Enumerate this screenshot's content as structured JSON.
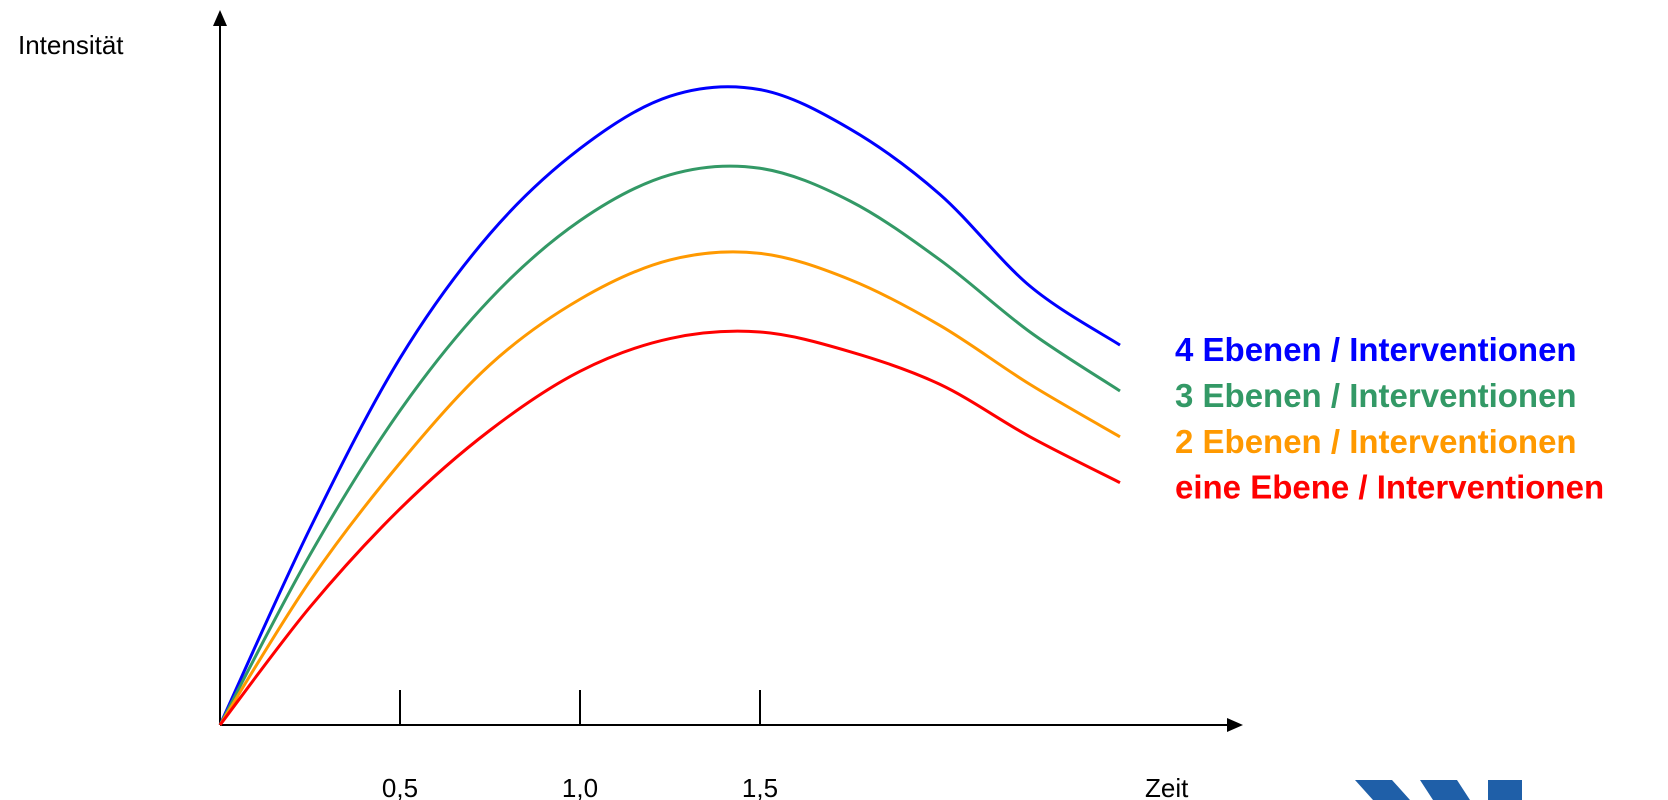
{
  "chart_data": {
    "type": "line",
    "title": "",
    "ylabel": "Intensität",
    "xlabel": "Zeit",
    "xlim": [
      0,
      2.5
    ],
    "ylim": [
      0,
      100
    ],
    "x_ticks": [
      {
        "value": 0.5,
        "label": "0,5"
      },
      {
        "value": 1.0,
        "label": "1,0"
      },
      {
        "value": 1.5,
        "label": "1,5"
      }
    ],
    "grid": false,
    "legend_placement": "right",
    "series": [
      {
        "name": "4 Ebenen / Interventionen",
        "color": "#0000ff",
        "x": [
          0,
          0.25,
          0.5,
          0.75,
          1.0,
          1.25,
          1.5,
          1.75,
          2.0,
          2.25,
          2.5
        ],
        "y": [
          0,
          30,
          56,
          75,
          88,
          96,
          97,
          91,
          81,
          67,
          58
        ]
      },
      {
        "name": "3 Ebenen / Interventionen",
        "color": "#339966",
        "x": [
          0,
          0.25,
          0.5,
          0.75,
          1.0,
          1.25,
          1.5,
          1.75,
          2.0,
          2.25,
          2.5
        ],
        "y": [
          0,
          26,
          48,
          65,
          77,
          84,
          85,
          80,
          71,
          60,
          51
        ]
      },
      {
        "name": "2 Ebenen / Interventionen",
        "color": "#ff9900",
        "x": [
          0,
          0.25,
          0.5,
          0.75,
          1.0,
          1.25,
          1.5,
          1.75,
          2.0,
          2.25,
          2.5
        ],
        "y": [
          0,
          22,
          40,
          55,
          65,
          71,
          72,
          68,
          61,
          52,
          44
        ]
      },
      {
        "name": "eine Ebene / Interventionen",
        "color": "#ff0000",
        "x": [
          0,
          0.25,
          0.5,
          0.75,
          1.0,
          1.25,
          1.5,
          1.75,
          2.0,
          2.25,
          2.5
        ],
        "y": [
          0,
          18,
          33,
          45,
          54,
          59,
          60,
          57,
          52,
          44,
          37
        ]
      }
    ]
  }
}
